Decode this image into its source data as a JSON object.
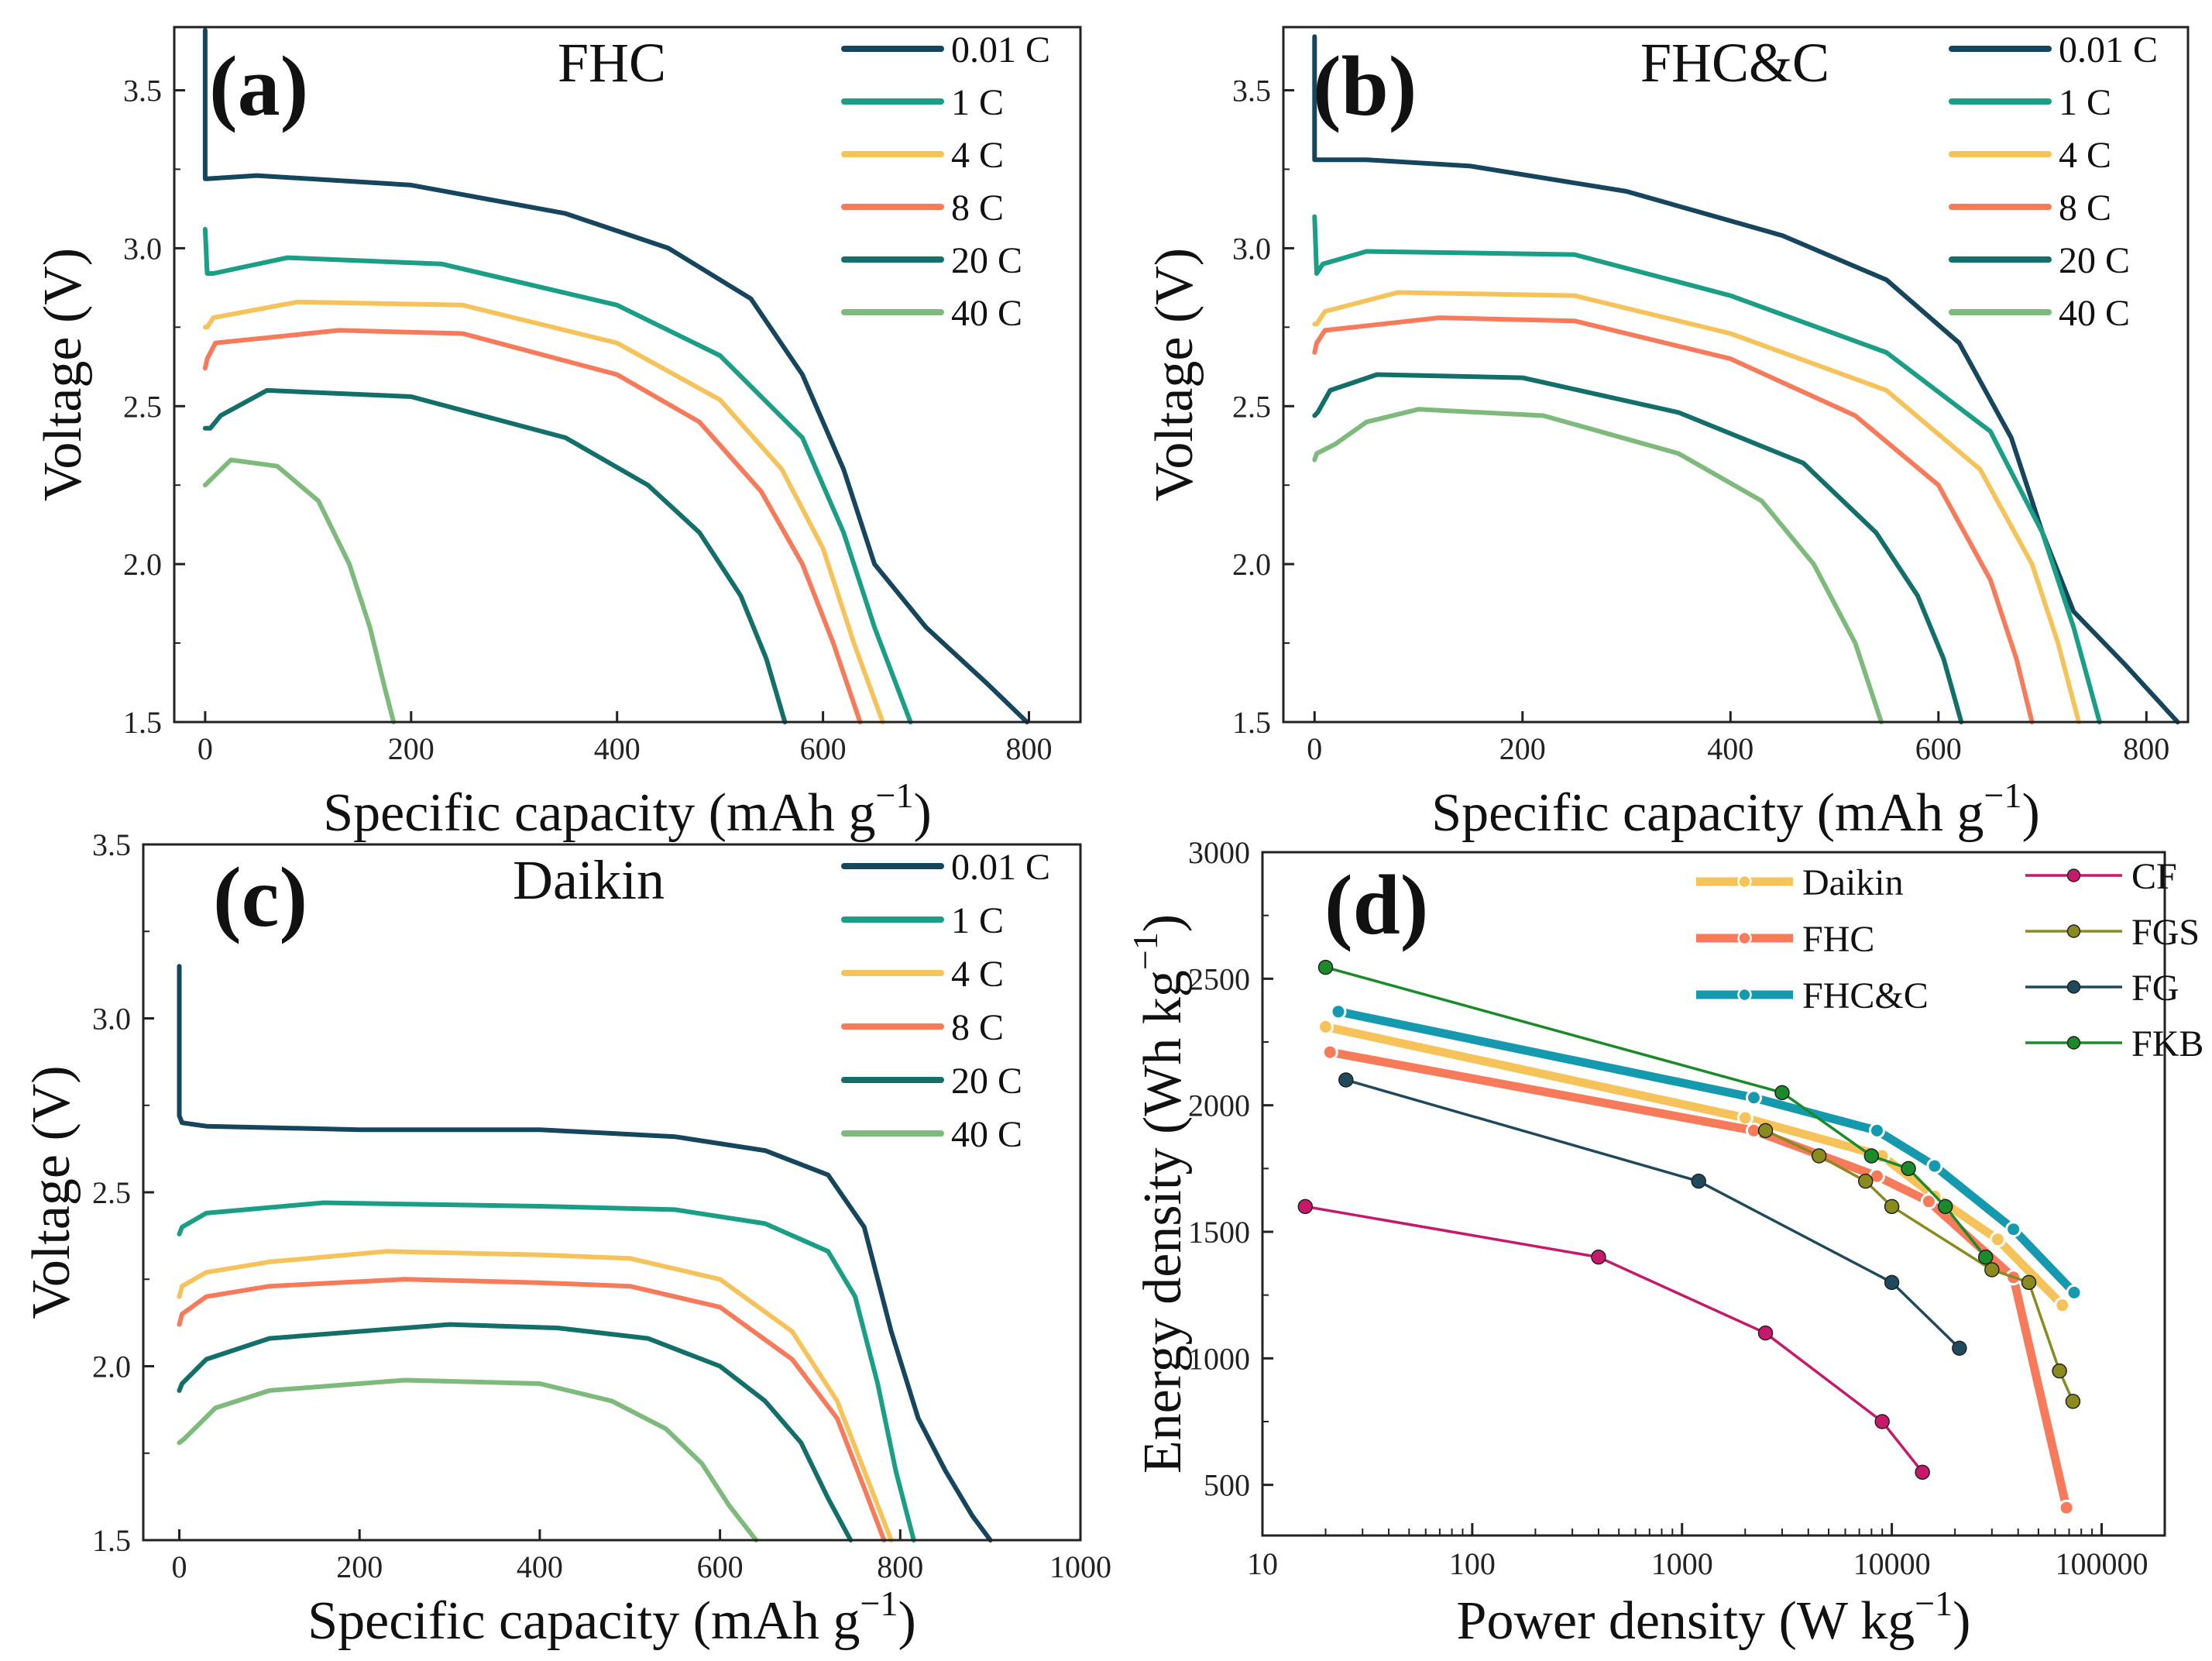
{
  "chart_data": [
    {
      "panel": "(a)",
      "type": "line",
      "title": "FHC",
      "xlabel": "Specific capacity (mAh g",
      "xlabel_sup": "−1",
      "xlabel_end": ")",
      "ylabel": "Voltage (V)",
      "xlim": [
        -30,
        850
      ],
      "ylim": [
        1.5,
        3.7
      ],
      "xticks": [
        0,
        200,
        400,
        600,
        800
      ],
      "xtick_labels": [
        "0",
        "200",
        "400",
        "600",
        "800"
      ],
      "yticks": [
        1.5,
        2.0,
        2.5,
        3.0,
        3.5
      ],
      "ytick_labels": [
        "1.5",
        "2.0",
        "2.5",
        "3.0",
        "3.5"
      ],
      "legend_position": "top-right",
      "series": [
        {
          "name": "0.01 C",
          "color": "#16455e",
          "x": [
            0,
            0,
            2,
            50,
            200,
            350,
            450,
            530,
            580,
            620,
            650,
            700,
            760,
            798
          ],
          "y": [
            3.69,
            3.22,
            3.22,
            3.23,
            3.2,
            3.11,
            3.0,
            2.84,
            2.6,
            2.3,
            2.0,
            1.8,
            1.62,
            1.5
          ]
        },
        {
          "name": "1 C",
          "color": "#1a9e86",
          "x": [
            0,
            2,
            8,
            80,
            230,
            400,
            500,
            580,
            620,
            650,
            685
          ],
          "y": [
            3.06,
            2.92,
            2.92,
            2.97,
            2.95,
            2.82,
            2.66,
            2.4,
            2.1,
            1.8,
            1.5
          ]
        },
        {
          "name": "4 C",
          "color": "#f6c35a",
          "x": [
            0,
            2,
            8,
            90,
            250,
            400,
            500,
            560,
            600,
            630,
            658
          ],
          "y": [
            2.75,
            2.75,
            2.78,
            2.83,
            2.82,
            2.7,
            2.52,
            2.3,
            2.05,
            1.75,
            1.5
          ]
        },
        {
          "name": "8 C",
          "color": "#f77a5a",
          "x": [
            0,
            2,
            10,
            130,
            250,
            400,
            480,
            540,
            580,
            610,
            636
          ],
          "y": [
            2.62,
            2.65,
            2.7,
            2.74,
            2.73,
            2.6,
            2.45,
            2.23,
            2.0,
            1.75,
            1.5
          ]
        },
        {
          "name": "20 C",
          "color": "#136f6a",
          "x": [
            0,
            5,
            15,
            60,
            200,
            350,
            430,
            480,
            520,
            545,
            563
          ],
          "y": [
            2.43,
            2.43,
            2.47,
            2.55,
            2.53,
            2.4,
            2.25,
            2.1,
            1.9,
            1.7,
            1.5
          ]
        },
        {
          "name": "40 C",
          "color": "#7dba7c",
          "x": [
            0,
            3,
            25,
            70,
            110,
            140,
            160,
            175,
            183
          ],
          "y": [
            2.25,
            2.26,
            2.33,
            2.31,
            2.2,
            2.0,
            1.8,
            1.6,
            1.5
          ]
        }
      ]
    },
    {
      "panel": "(b)",
      "type": "line",
      "title": "FHC&C",
      "xlabel": "Specific capacity (mAh g",
      "xlabel_sup": "−1",
      "xlabel_end": ")",
      "ylabel": "Voltage (V)",
      "xlim": [
        -30,
        840
      ],
      "ylim": [
        1.5,
        3.7
      ],
      "xticks": [
        0,
        200,
        400,
        600,
        800
      ],
      "xtick_labels": [
        "0",
        "200",
        "400",
        "600",
        "800"
      ],
      "yticks": [
        1.5,
        2.0,
        2.5,
        3.0,
        3.5
      ],
      "ytick_labels": [
        "1.5",
        "2.0",
        "2.5",
        "3.0",
        "3.5"
      ],
      "legend_position": "top-right",
      "series": [
        {
          "name": "0.01 C",
          "color": "#16455e",
          "x": [
            0,
            0,
            2,
            50,
            150,
            300,
            450,
            550,
            620,
            670,
            700,
            730,
            780,
            830
          ],
          "y": [
            3.67,
            3.28,
            3.28,
            3.28,
            3.26,
            3.18,
            3.04,
            2.9,
            2.7,
            2.4,
            2.1,
            1.85,
            1.68,
            1.5
          ]
        },
        {
          "name": "1 C",
          "color": "#1a9e86",
          "x": [
            0,
            2,
            8,
            50,
            250,
            400,
            550,
            650,
            700,
            730,
            755
          ],
          "y": [
            3.1,
            2.92,
            2.95,
            2.99,
            2.98,
            2.85,
            2.67,
            2.42,
            2.1,
            1.8,
            1.5
          ]
        },
        {
          "name": "4 C",
          "color": "#f6c35a",
          "x": [
            0,
            2,
            10,
            80,
            250,
            400,
            550,
            640,
            690,
            715,
            735
          ],
          "y": [
            2.76,
            2.76,
            2.8,
            2.86,
            2.85,
            2.73,
            2.55,
            2.3,
            2.0,
            1.75,
            1.5
          ]
        },
        {
          "name": "8 C",
          "color": "#f77a5a",
          "x": [
            0,
            2,
            10,
            120,
            250,
            400,
            520,
            600,
            650,
            675,
            690
          ],
          "y": [
            2.67,
            2.7,
            2.74,
            2.78,
            2.77,
            2.65,
            2.47,
            2.25,
            1.95,
            1.7,
            1.5
          ]
        },
        {
          "name": "20 C",
          "color": "#136f6a",
          "x": [
            0,
            3,
            15,
            60,
            200,
            350,
            470,
            540,
            580,
            605,
            622
          ],
          "y": [
            2.47,
            2.48,
            2.55,
            2.6,
            2.59,
            2.48,
            2.32,
            2.1,
            1.9,
            1.7,
            1.5
          ]
        },
        {
          "name": "40 C",
          "color": "#7dba7c",
          "x": [
            0,
            2,
            20,
            50,
            100,
            220,
            350,
            430,
            480,
            520,
            545
          ],
          "y": [
            2.33,
            2.35,
            2.38,
            2.45,
            2.49,
            2.47,
            2.35,
            2.2,
            2.0,
            1.75,
            1.5
          ]
        }
      ]
    },
    {
      "panel": "(c)",
      "type": "line",
      "title": "Daikin",
      "xlabel": "Specific capacity (mAh g",
      "xlabel_sup": "−1",
      "xlabel_end": ")",
      "ylabel": "Voltage (V)",
      "xlim": [
        -40,
        1000
      ],
      "ylim": [
        1.5,
        3.5
      ],
      "xticks": [
        0,
        200,
        400,
        600,
        800,
        1000
      ],
      "xtick_labels": [
        "0",
        "200",
        "400",
        "600",
        "800",
        "1000"
      ],
      "yticks": [
        1.5,
        2.0,
        2.5,
        3.0,
        3.5
      ],
      "ytick_labels": [
        "1.5",
        "2.0",
        "2.5",
        "3.0",
        "3.5"
      ],
      "legend_position": "top-right",
      "series": [
        {
          "name": "0.01 C",
          "color": "#16455e",
          "x": [
            0,
            0,
            3,
            30,
            200,
            400,
            550,
            650,
            720,
            760,
            790,
            820,
            850,
            880,
            900
          ],
          "y": [
            3.15,
            2.72,
            2.7,
            2.69,
            2.68,
            2.68,
            2.66,
            2.62,
            2.55,
            2.4,
            2.1,
            1.85,
            1.7,
            1.57,
            1.5
          ]
        },
        {
          "name": "1 C",
          "color": "#1a9e86",
          "x": [
            0,
            3,
            30,
            160,
            400,
            550,
            650,
            720,
            750,
            775,
            795,
            815
          ],
          "y": [
            2.38,
            2.4,
            2.44,
            2.47,
            2.46,
            2.45,
            2.41,
            2.33,
            2.2,
            1.95,
            1.7,
            1.5
          ]
        },
        {
          "name": "4 C",
          "color": "#f6c35a",
          "x": [
            0,
            3,
            30,
            100,
            230,
            400,
            500,
            600,
            680,
            730,
            760,
            790
          ],
          "y": [
            2.2,
            2.23,
            2.27,
            2.3,
            2.33,
            2.32,
            2.31,
            2.25,
            2.1,
            1.9,
            1.7,
            1.5
          ]
        },
        {
          "name": "8 C",
          "color": "#f77a5a",
          "x": [
            0,
            3,
            30,
            100,
            250,
            400,
            500,
            600,
            680,
            730,
            760,
            782
          ],
          "y": [
            2.12,
            2.15,
            2.2,
            2.23,
            2.25,
            2.24,
            2.23,
            2.17,
            2.02,
            1.85,
            1.65,
            1.5
          ]
        },
        {
          "name": "20 C",
          "color": "#136f6a",
          "x": [
            0,
            3,
            30,
            100,
            300,
            420,
            520,
            600,
            650,
            690,
            720,
            745
          ],
          "y": [
            1.93,
            1.95,
            2.02,
            2.08,
            2.12,
            2.11,
            2.08,
            2.0,
            1.9,
            1.78,
            1.62,
            1.5
          ]
        },
        {
          "name": "40 C",
          "color": "#7dba7c",
          "x": [
            0,
            5,
            40,
            100,
            250,
            400,
            480,
            540,
            580,
            610,
            640
          ],
          "y": [
            1.78,
            1.79,
            1.88,
            1.93,
            1.96,
            1.95,
            1.9,
            1.82,
            1.72,
            1.6,
            1.5
          ]
        }
      ]
    },
    {
      "panel": "(d)",
      "type": "line",
      "title": "",
      "xlabel": "Power density (W kg",
      "xlabel_sup": "−1",
      "xlabel_end": ")",
      "ylabel": "Energy density (Wh kg",
      "ylabel_sup": "−1",
      "ylabel_end": ")",
      "xscale": "log",
      "xlim": [
        10,
        200000
      ],
      "ylim": [
        300,
        3000
      ],
      "xticks": [
        10,
        100,
        1000,
        10000,
        100000
      ],
      "xtick_labels": [
        "10",
        "100",
        "1000",
        "10000",
        "100000"
      ],
      "yticks": [
        500,
        1000,
        1500,
        2000,
        2500,
        3000
      ],
      "ytick_labels": [
        "500",
        "1000",
        "1500",
        "2000",
        "2500",
        "3000"
      ],
      "legend_position": "top-right",
      "series": [
        {
          "name": "Daikin",
          "color": "#f6c35a",
          "width": 11,
          "x": [
            20,
            2000,
            9000,
            16000,
            32000,
            65000
          ],
          "y": [
            2310,
            1950,
            1800,
            1640,
            1470,
            1210
          ]
        },
        {
          "name": "FHC",
          "color": "#f77a5a",
          "width": 11,
          "x": [
            21,
            2200,
            8500,
            15000,
            38000,
            68000
          ],
          "y": [
            2210,
            1900,
            1720,
            1620,
            1320,
            410
          ]
        },
        {
          "name": "FHC&C",
          "color": "#1599ae",
          "width": 11,
          "x": [
            23,
            2200,
            8500,
            16000,
            38000,
            74000
          ],
          "y": [
            2370,
            2030,
            1900,
            1760,
            1510,
            1260
          ]
        },
        {
          "name": "CF",
          "color": "#c7196b",
          "width": 3.5,
          "x": [
            16,
            400,
            2500,
            9000,
            14000
          ],
          "y": [
            1600,
            1400,
            1100,
            750,
            550
          ]
        },
        {
          "name": "FGS",
          "color": "#8a8a1e",
          "width": 3.5,
          "x": [
            2500,
            4500,
            7500,
            10000,
            30000,
            45000,
            63000,
            73000
          ],
          "y": [
            1900,
            1800,
            1700,
            1600,
            1350,
            1300,
            950,
            830
          ]
        },
        {
          "name": "FG",
          "color": "#1e4a5c",
          "width": 3.5,
          "x": [
            25,
            1200,
            10000,
            21000
          ],
          "y": [
            2100,
            1700,
            1300,
            1040
          ]
        },
        {
          "name": "FKB",
          "color": "#1a8a2a",
          "width": 3.5,
          "x": [
            20,
            3000,
            8000,
            12000,
            18000,
            28000
          ],
          "y": [
            2545,
            2050,
            1800,
            1750,
            1600,
            1400
          ]
        }
      ]
    }
  ]
}
